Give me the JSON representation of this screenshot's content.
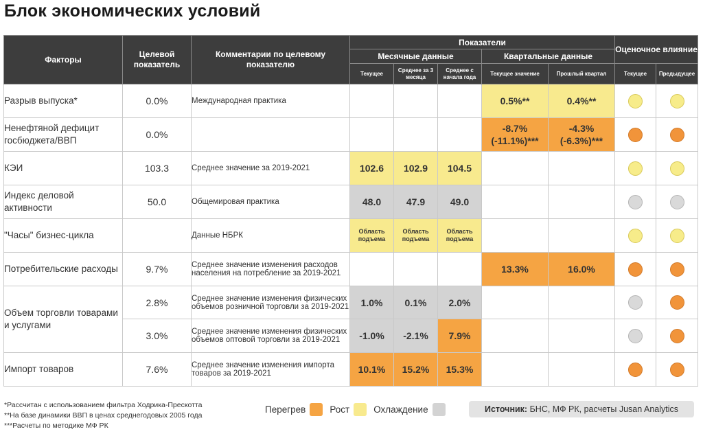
{
  "title": "Блок экономических условий",
  "headers": {
    "factors": "Факторы",
    "target": "Целевой показатель",
    "comments": "Комментарии по целевому показателю",
    "indicators": "Показатели",
    "monthly": "Месячные данные",
    "quarterly": "Квартальные данные",
    "impact": "Оценочное влияние",
    "m_current": "Текущее",
    "m_avg3": "Среднее за 3 месяца",
    "m_ytd": "Среднее с начала года",
    "q_current": "Текущее значение",
    "q_prev": "Прошлый квартал",
    "i_current": "Текущее",
    "i_prev": "Предыдущее"
  },
  "rows": [
    {
      "factor": "Разрыв выпуска*",
      "target": "0.0%",
      "comment": "Международная практика",
      "m": [
        "",
        "",
        ""
      ],
      "q": [
        "0.5%**",
        "0.4%**"
      ],
      "impact": [
        "yellow",
        "yellow"
      ]
    },
    {
      "factor": "Ненефтяной дефицит госбюджета/ВВП",
      "target": "0.0%",
      "comment": "",
      "m": [
        "",
        "",
        ""
      ],
      "q": [
        "-8.7% (-11.1%)***",
        "-4.3% (-6.3%)***"
      ],
      "impact": [
        "orange",
        "orange"
      ]
    },
    {
      "factor": "КЭИ",
      "target": "103.3",
      "comment": "Среднее значение за 2019-2021",
      "m": [
        "102.6",
        "102.9",
        "104.5"
      ],
      "q": [
        "",
        ""
      ],
      "impact": [
        "yellow",
        "yellow"
      ]
    },
    {
      "factor": "Индекс деловой активности",
      "target": "50.0",
      "comment": "Общемировая практика",
      "m": [
        "48.0",
        "47.9",
        "49.0"
      ],
      "q": [
        "",
        ""
      ],
      "impact": [
        "gray",
        "gray"
      ]
    },
    {
      "factor": "\"Часы\" бизнес-цикла",
      "target": "",
      "comment": "Данные НБРК",
      "m": [
        "Область подъема",
        "Область подъема",
        "Область подъема"
      ],
      "q": [
        "",
        ""
      ],
      "impact": [
        "yellow",
        "yellow"
      ]
    },
    {
      "factor": "Потребительские расходы",
      "target": "9.7%",
      "comment": "Среднее значение изменения расходов населения на потребление за 2019-2021",
      "m": [
        "",
        "",
        ""
      ],
      "q": [
        "13.3%",
        "16.0%"
      ],
      "impact": [
        "orange",
        "orange"
      ]
    },
    {
      "factor": "Объем торговли товарами и услугами",
      "target": "2.8%",
      "comment": "Среднее значение изменения физических объемов розничной торговли за 2019-2021",
      "m": [
        "1.0%",
        "0.1%",
        "2.0%"
      ],
      "q": [
        "",
        ""
      ],
      "impact": [
        "gray",
        "orange"
      ]
    },
    {
      "factor": "",
      "target": "3.0%",
      "comment": "Среднее значение изменения физических объемов оптовой торговли за 2019-2021",
      "m": [
        "-1.0%",
        "-2.1%",
        "7.9%"
      ],
      "q": [
        "",
        ""
      ],
      "impact": [
        "gray",
        "orange"
      ]
    },
    {
      "factor": "Импорт товаров",
      "target": "7.6%",
      "comment": "Среднее значение изменения импорта товаров за 2019-2021",
      "m": [
        "10.1%",
        "15.2%",
        "15.3%"
      ],
      "q": [
        "",
        ""
      ],
      "impact": [
        "orange",
        "orange"
      ]
    }
  ],
  "colors": {
    "orange": "#f5a443",
    "yellow": "#f8ea8e",
    "gray": "#d3d3d3",
    "header": "#3d3d3d"
  },
  "footnotes": [
    "*Рассчитан с использованием фильтра Ходрика-Прескотта",
    "**На базе динамики ВВП в ценах среднегодовых 2005 года",
    "***Расчеты по методике МФ РК"
  ],
  "legend": {
    "overheat": "Перегрев",
    "growth": "Рост",
    "cooling": "Охлаждение"
  },
  "source": {
    "label": "Источник:",
    "text": "БНС, МФ РК, расчеты Jusan Analytics"
  }
}
